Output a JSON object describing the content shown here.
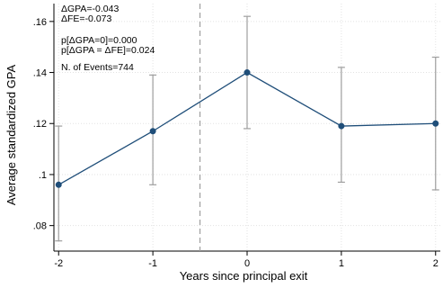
{
  "chart_data": {
    "type": "line",
    "xlabel": "Years since principal exit",
    "ylabel": "Average standardized GPA",
    "x": [
      -2,
      -1,
      0,
      1,
      2
    ],
    "x_tick_labels": [
      "-2",
      "-1",
      "0",
      "1",
      "2"
    ],
    "xlim": [
      -2.05,
      2.05
    ],
    "ylim": [
      0.07,
      0.167
    ],
    "y_ticks": [
      0.08,
      0.1,
      0.12,
      0.14,
      0.16
    ],
    "y_tick_labels": [
      ".08",
      ".1",
      ".12",
      ".14",
      ".16"
    ],
    "series": [
      {
        "values": [
          0.096,
          0.117,
          0.14,
          0.119,
          0.12
        ],
        "ci_low": [
          0.074,
          0.096,
          0.118,
          0.097,
          0.094
        ],
        "ci_high": [
          0.119,
          0.139,
          0.162,
          0.142,
          0.146
        ],
        "color": "#1f4e79"
      }
    ],
    "reference_line_x": -0.5,
    "grid": true,
    "annotations": [
      "ΔGPA=-0.043",
      "ΔFE=-0.073",
      "p[ΔGPA=0]=0.000",
      "p[ΔGPA = ΔFE]=0.024",
      "N. of Events=744"
    ],
    "colors": {
      "line": "#1f4e79",
      "marker": "#1f4e79",
      "ci": "#9e9e9e",
      "grid": "#e2e2e2",
      "refline": "#9e9e9e"
    }
  }
}
